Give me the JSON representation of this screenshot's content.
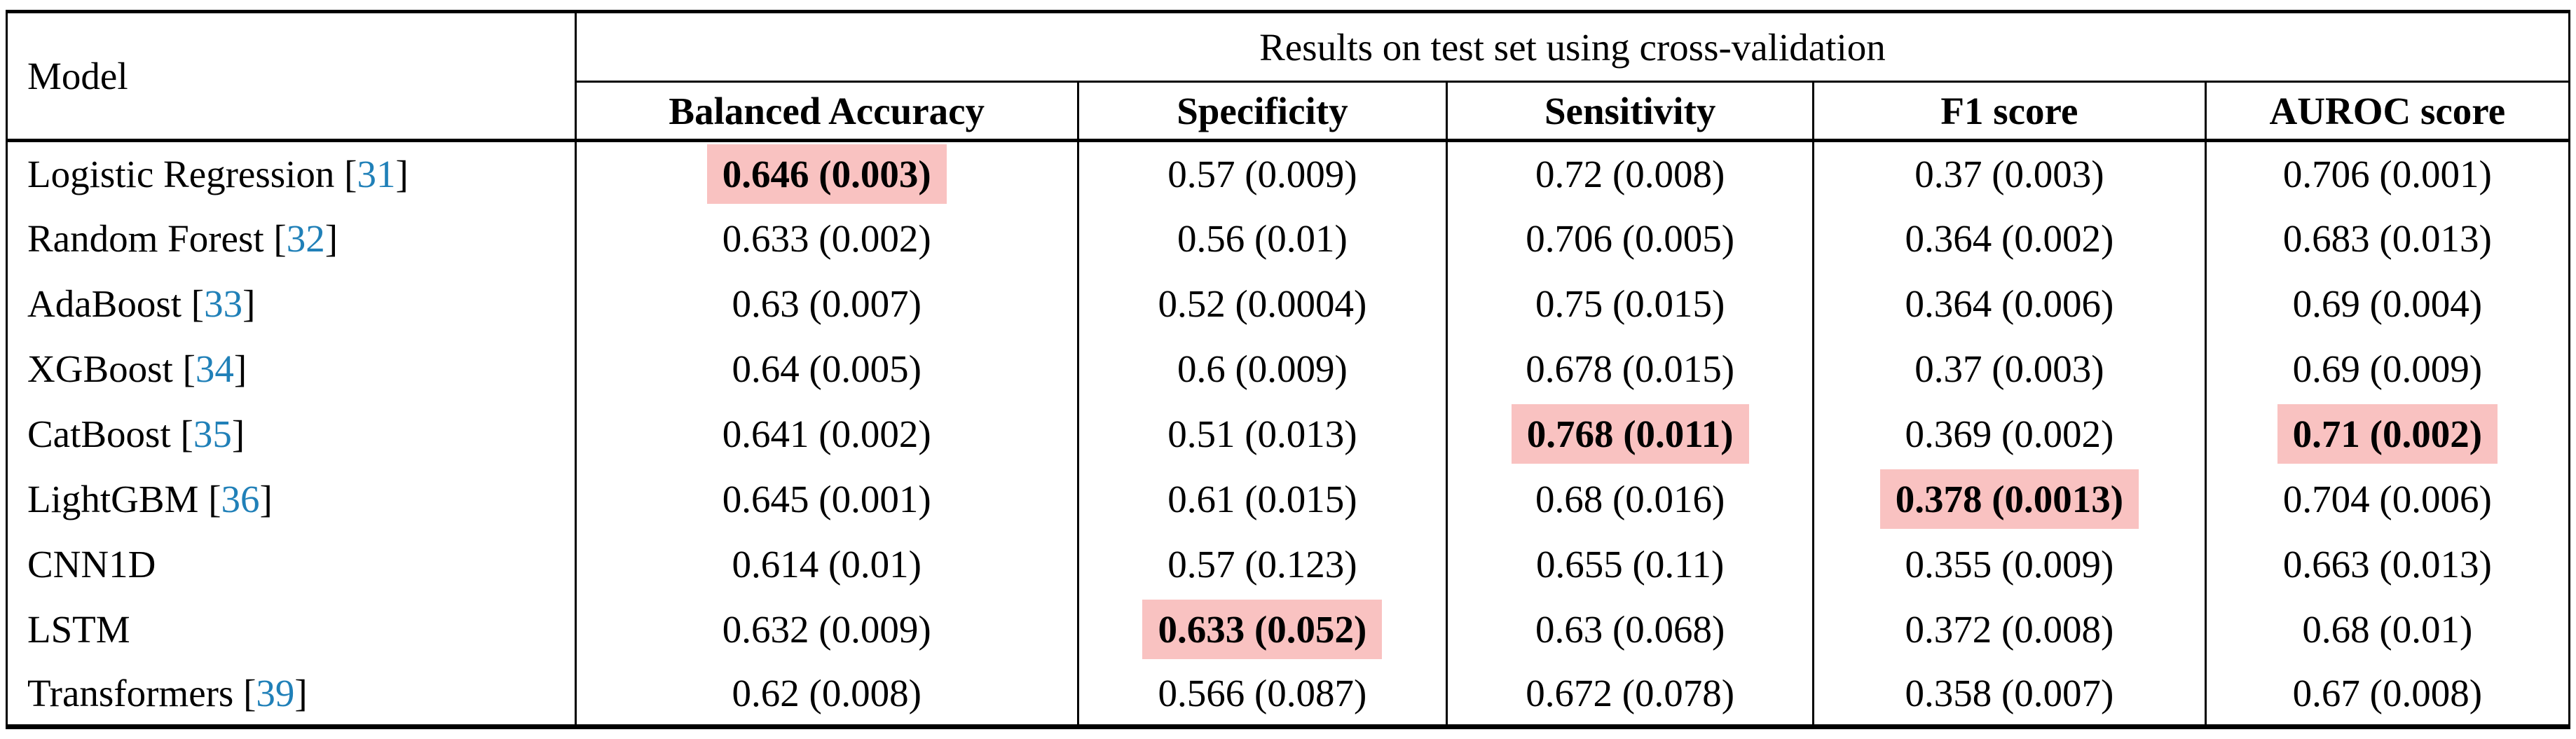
{
  "table": {
    "model_header": "Model",
    "group_header": "Results on test set using cross-validation",
    "columns": [
      "Balanced Accuracy",
      "Specificity",
      "Sensitivity",
      "F1 score",
      "AUROC score"
    ],
    "citation_brackets": [
      "[",
      "]"
    ],
    "rows": [
      {
        "model": "Logistic Regression",
        "citation": "31",
        "cells": [
          {
            "text": "0.646 (0.003)",
            "highlight": true
          },
          {
            "text": "0.57 (0.009)",
            "highlight": false
          },
          {
            "text": "0.72 (0.008)",
            "highlight": false
          },
          {
            "text": "0.37 (0.003)",
            "highlight": false
          },
          {
            "text": "0.706 (0.001)",
            "highlight": false
          }
        ]
      },
      {
        "model": "Random Forest",
        "citation": "32",
        "cells": [
          {
            "text": "0.633 (0.002)",
            "highlight": false
          },
          {
            "text": "0.56 (0.01)",
            "highlight": false
          },
          {
            "text": "0.706 (0.005)",
            "highlight": false
          },
          {
            "text": "0.364 (0.002)",
            "highlight": false
          },
          {
            "text": "0.683 (0.013)",
            "highlight": false
          }
        ]
      },
      {
        "model": "AdaBoost",
        "citation": "33",
        "cells": [
          {
            "text": "0.63 (0.007)",
            "highlight": false
          },
          {
            "text": "0.52 (0.0004)",
            "highlight": false
          },
          {
            "text": "0.75 (0.015)",
            "highlight": false
          },
          {
            "text": "0.364 (0.006)",
            "highlight": false
          },
          {
            "text": "0.69 (0.004)",
            "highlight": false
          }
        ]
      },
      {
        "model": "XGBoost",
        "citation": "34",
        "cells": [
          {
            "text": "0.64 (0.005)",
            "highlight": false
          },
          {
            "text": "0.6 (0.009)",
            "highlight": false
          },
          {
            "text": "0.678 (0.015)",
            "highlight": false
          },
          {
            "text": "0.37 (0.003)",
            "highlight": false
          },
          {
            "text": "0.69 (0.009)",
            "highlight": false
          }
        ]
      },
      {
        "model": "CatBoost",
        "citation": "35",
        "cells": [
          {
            "text": "0.641 (0.002)",
            "highlight": false
          },
          {
            "text": "0.51 (0.013)",
            "highlight": false
          },
          {
            "text": "0.768 (0.011)",
            "highlight": true
          },
          {
            "text": "0.369 (0.002)",
            "highlight": false
          },
          {
            "text": "0.71 (0.002)",
            "highlight": true
          }
        ]
      },
      {
        "model": "LightGBM",
        "citation": "36",
        "cells": [
          {
            "text": "0.645 (0.001)",
            "highlight": false
          },
          {
            "text": "0.61 (0.015)",
            "highlight": false
          },
          {
            "text": "0.68 (0.016)",
            "highlight": false
          },
          {
            "text": "0.378 (0.0013)",
            "highlight": true
          },
          {
            "text": "0.704 (0.006)",
            "highlight": false
          }
        ]
      },
      {
        "model": "CNN1D",
        "citation": null,
        "cells": [
          {
            "text": "0.614 (0.01)",
            "highlight": false
          },
          {
            "text": "0.57 (0.123)",
            "highlight": false
          },
          {
            "text": "0.655 (0.11)",
            "highlight": false
          },
          {
            "text": "0.355 (0.009)",
            "highlight": false
          },
          {
            "text": "0.663 (0.013)",
            "highlight": false
          }
        ]
      },
      {
        "model": "LSTM",
        "citation": null,
        "cells": [
          {
            "text": "0.632 (0.009)",
            "highlight": false
          },
          {
            "text": "0.633 (0.052)",
            "highlight": true
          },
          {
            "text": "0.63 (0.068)",
            "highlight": false
          },
          {
            "text": "0.372 (0.008)",
            "highlight": false
          },
          {
            "text": "0.68 (0.01)",
            "highlight": false
          }
        ]
      },
      {
        "model": "Transformers",
        "citation": "39",
        "cells": [
          {
            "text": "0.62 (0.008)",
            "highlight": false
          },
          {
            "text": "0.566 (0.087)",
            "highlight": false
          },
          {
            "text": "0.672 (0.078)",
            "highlight": false
          },
          {
            "text": "0.358 (0.007)",
            "highlight": false
          },
          {
            "text": "0.67 (0.008)",
            "highlight": false
          }
        ]
      }
    ],
    "colors": {
      "highlight_bg": "#f9c2c1",
      "citation_blue": "#2080b8",
      "border_black": "#000000"
    }
  }
}
